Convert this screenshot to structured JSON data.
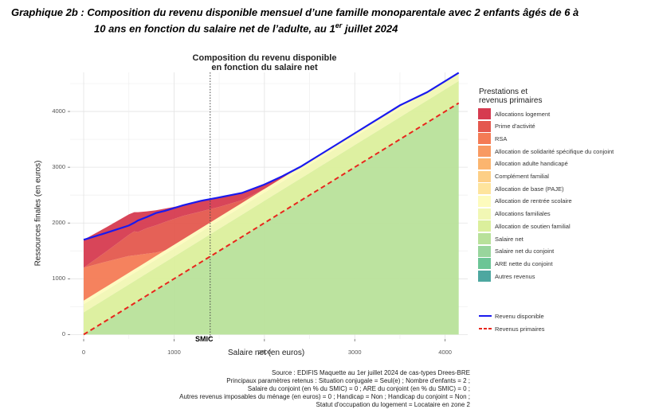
{
  "page": {
    "title_line1": "Graphique 2b : Composition du revenu disponible mensuel d’une famille monoparentale avec 2 enfants âgés de 6 à",
    "title_line2_pre": "10 ans en fonction du salaire net de l’adulte, au 1",
    "title_line2_sup": "er",
    "title_line2_post": " juillet 2024"
  },
  "chart_data": {
    "type": "area",
    "title": "Composition du revenu disponible\nen fonction du salaire net",
    "title_line1": "Composition du revenu disponible",
    "title_line2": "en fonction du salaire net",
    "xlabel": "Salaire net (en euros)",
    "ylabel": "Ressources finales (en euros)",
    "xlim": [
      -150,
      4250
    ],
    "ylim": [
      -80,
      4700
    ],
    "xticks": [
      0,
      1000,
      2000,
      3000,
      4000
    ],
    "xtick_labels": [
      "0",
      "1000",
      "2000",
      "3000",
      "4000"
    ],
    "yticks": [
      0,
      1000,
      2000,
      3000,
      4000
    ],
    "ytick_labels": [
      "0",
      "1000",
      "2000",
      "3000",
      "4000"
    ],
    "grid": true,
    "smic": {
      "x": 1400,
      "label": "SMIC"
    },
    "legend_position": "right",
    "legend_title": "Prestations et\nrevenus primaires",
    "legend_title_line1": "Prestations et",
    "legend_title_line2": "revenus primaires",
    "area_series": [
      {
        "name": "Allocations logement",
        "color": "#d63b50"
      },
      {
        "name": "Prime d'activité",
        "color": "#e4584e"
      },
      {
        "name": "RSA",
        "color": "#f47b55"
      },
      {
        "name": "Allocation de solidarité spécifique du conjoint",
        "color": "#f89a62"
      },
      {
        "name": "Allocation adulte handicapé",
        "color": "#fbb56f"
      },
      {
        "name": "Complément familial",
        "color": "#fdcf86"
      },
      {
        "name": "Allocation de base (PAJE)",
        "color": "#fee49d"
      },
      {
        "name": "Allocation de rentrée scolaire",
        "color": "#fdfbbd"
      },
      {
        "name": "Allocations familiales",
        "color": "#f1f7b4"
      },
      {
        "name": "Allocation de soutien familial",
        "color": "#dbef9c"
      },
      {
        "name": "Salaire net",
        "color": "#b8e19a"
      },
      {
        "name": "Salaire net du conjoint",
        "color": "#98d59c"
      },
      {
        "name": "ARE nette du conjoint",
        "color": "#6cc596"
      },
      {
        "name": "Autres revenus",
        "color": "#4da7a0"
      }
    ],
    "x": [
      0,
      250,
      500,
      560,
      600,
      700,
      800,
      900,
      1100,
      1300,
      1400,
      1500,
      1750,
      2000,
      2200,
      2400,
      2600,
      2800,
      3000,
      3200,
      3300,
      3500,
      3800,
      4150
    ],
    "stack": {
      "salaire_net": [
        0,
        250,
        500,
        560,
        600,
        700,
        800,
        900,
        1100,
        1300,
        1400,
        1500,
        1750,
        2000,
        2200,
        2400,
        2600,
        2800,
        3000,
        3200,
        3300,
        3500,
        3800,
        4150
      ],
      "allocation_soutien_familial": [
        398,
        398,
        398,
        398,
        398,
        398,
        398,
        398,
        398,
        398,
        398,
        398,
        398,
        398,
        398,
        398,
        398,
        398,
        398,
        398,
        398,
        398,
        398,
        398
      ],
      "allocations_familiales": [
        146,
        146,
        146,
        146,
        146,
        146,
        146,
        146,
        146,
        146,
        146,
        146,
        146,
        146,
        146,
        146,
        146,
        146,
        146,
        146,
        146,
        146,
        146,
        146
      ],
      "allocation_rentree_scolaire": [
        65,
        65,
        65,
        65,
        65,
        65,
        65,
        65,
        65,
        65,
        65,
        65,
        65,
        65,
        65,
        65,
        65,
        65,
        65,
        65,
        65,
        65,
        0,
        0
      ],
      "rsa": [
        590,
        450,
        300,
        250,
        220,
        140,
        60,
        0,
        0,
        0,
        0,
        0,
        0,
        0,
        0,
        0,
        0,
        0,
        0,
        0,
        0,
        0,
        0,
        0
      ],
      "prime_activite": [
        0,
        180,
        380,
        430,
        410,
        460,
        490,
        510,
        420,
        300,
        240,
        180,
        50,
        0,
        0,
        0,
        0,
        0,
        0,
        0,
        0,
        0,
        0,
        0
      ],
      "allocations_logement": [
        500,
        435,
        365,
        345,
        355,
        300,
        270,
        240,
        190,
        190,
        180,
        170,
        130,
        80,
        30,
        0,
        0,
        0,
        0,
        0,
        0,
        0,
        0,
        0
      ]
    },
    "series": [
      {
        "name": "Revenu disponible",
        "color": "#1a1aee",
        "style": "solid",
        "values": [
          1699,
          1824,
          1954,
          2004,
          2044,
          2109,
          2179,
          2219,
          2319,
          2399,
          2429,
          2459,
          2539,
          2689,
          2839,
          3009,
          3209,
          3409,
          3609,
          3809,
          3909,
          4109,
          4344,
          4694
        ]
      },
      {
        "name": "Revenus primaires",
        "color": "#e8251c",
        "style": "dashed",
        "values": [
          0,
          250,
          500,
          560,
          600,
          700,
          800,
          900,
          1100,
          1300,
          1400,
          1500,
          1750,
          2000,
          2200,
          2400,
          2600,
          2800,
          3000,
          3200,
          3300,
          3500,
          3800,
          4150
        ]
      }
    ],
    "lines_legend": [
      {
        "name": "Revenu disponible",
        "color": "#1a1aee",
        "dashed": false
      },
      {
        "name": "Revenus primaires",
        "color": "#e8251c",
        "dashed": true
      }
    ]
  },
  "footnote": {
    "line1": "Source : EDIFIS Maquette au 1er juillet 2024 de cas-types Drees-BRE",
    "line2": "Principaux paramètres retenus : Situation conjugale = Seul(e) ; Nombre d'enfants = 2 ;",
    "line3": "Salaire du conjoint (en % du SMIC) = 0 ; ARE du conjoint (en % du SMIC) = 0 ;",
    "line4": "Autres revenus imposables du ménage (en euros) = 0 ; Handicap = Non ; Handicap du conjoint = Non ;",
    "line5": "Statut d'occupation du logement = Locataire en zone 2"
  }
}
